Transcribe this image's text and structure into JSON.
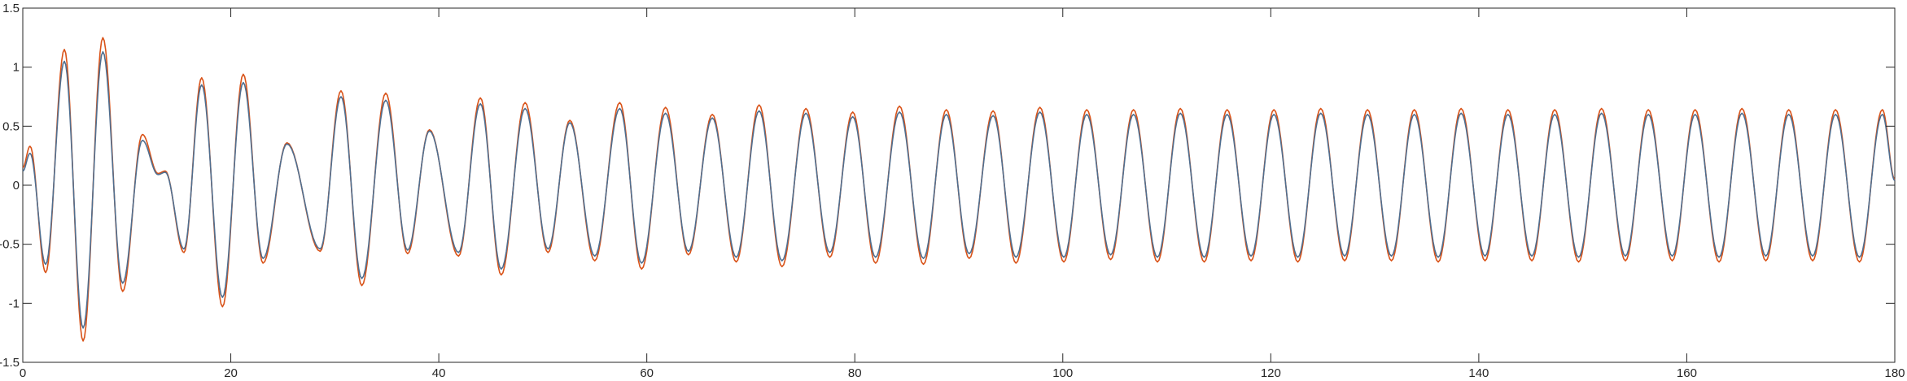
{
  "chart_data": {
    "type": "line",
    "title": "",
    "xlabel": "",
    "ylabel": "",
    "xlim": [
      0,
      180
    ],
    "ylim": [
      -1.5,
      1.5
    ],
    "x_ticks": [
      0,
      20,
      40,
      60,
      80,
      100,
      120,
      140,
      160,
      180
    ],
    "y_ticks": [
      -1.5,
      -1,
      -0.5,
      0,
      0.5,
      1,
      1.5
    ],
    "x_tick_labels": [
      "0",
      "20",
      "40",
      "60",
      "80",
      "100",
      "120",
      "140",
      "160",
      "180"
    ],
    "y_tick_labels": [
      "-1.5",
      "-1",
      "-0.5",
      "0",
      "0.5",
      "1",
      "1.5"
    ],
    "grid": false,
    "legend": "none",
    "series": [
      {
        "color": "#D95319",
        "sampling": "local extrema (peaks and troughs) of an oscillating signal; smooth cosine interpolation between points",
        "points": [
          [
            0,
            0.15
          ],
          [
            0.7,
            0.33
          ],
          [
            2.2,
            -0.74
          ],
          [
            4.0,
            1.15
          ],
          [
            5.8,
            -1.32
          ],
          [
            7.7,
            1.25
          ],
          [
            9.6,
            -0.9
          ],
          [
            11.5,
            0.43
          ],
          [
            13.0,
            0.1
          ],
          [
            13.7,
            0.12
          ],
          [
            15.5,
            -0.57
          ],
          [
            17.2,
            0.91
          ],
          [
            19.2,
            -1.03
          ],
          [
            21.2,
            0.94
          ],
          [
            23.1,
            -0.66
          ],
          [
            25.4,
            0.36
          ],
          [
            28.6,
            -0.56
          ],
          [
            30.6,
            0.8
          ],
          [
            32.6,
            -0.85
          ],
          [
            34.9,
            0.78
          ],
          [
            37.0,
            -0.58
          ],
          [
            39.1,
            0.47
          ],
          [
            41.9,
            -0.6
          ],
          [
            44.0,
            0.74
          ],
          [
            46.0,
            -0.76
          ],
          [
            48.3,
            0.7
          ],
          [
            50.5,
            -0.57
          ],
          [
            52.6,
            0.55
          ],
          [
            55.0,
            -0.64
          ],
          [
            57.4,
            0.7
          ],
          [
            59.5,
            -0.71
          ],
          [
            61.8,
            0.66
          ],
          [
            64.0,
            -0.59
          ],
          [
            66.3,
            0.6
          ],
          [
            68.6,
            -0.65
          ],
          [
            70.8,
            0.68
          ],
          [
            73.0,
            -0.69
          ],
          [
            75.3,
            0.65
          ],
          [
            77.6,
            -0.61
          ],
          [
            79.8,
            0.62
          ],
          [
            82.0,
            -0.66
          ],
          [
            84.3,
            0.67
          ],
          [
            86.6,
            -0.67
          ],
          [
            88.8,
            0.64
          ],
          [
            91.0,
            -0.62
          ],
          [
            93.3,
            0.63
          ],
          [
            95.5,
            -0.66
          ],
          [
            97.8,
            0.66
          ],
          [
            100.1,
            -0.65
          ],
          [
            102.3,
            0.64
          ],
          [
            104.6,
            -0.63
          ],
          [
            106.8,
            0.64
          ],
          [
            109.1,
            -0.65
          ],
          [
            111.3,
            0.65
          ],
          [
            113.6,
            -0.65
          ],
          [
            115.8,
            0.64
          ],
          [
            118.1,
            -0.64
          ],
          [
            120.3,
            0.64
          ],
          [
            122.6,
            -0.65
          ],
          [
            124.8,
            0.65
          ],
          [
            127.1,
            -0.64
          ],
          [
            129.3,
            0.64
          ],
          [
            131.6,
            -0.64
          ],
          [
            133.8,
            0.64
          ],
          [
            136.1,
            -0.65
          ],
          [
            138.3,
            0.65
          ],
          [
            140.6,
            -0.64
          ],
          [
            142.8,
            0.64
          ],
          [
            145.1,
            -0.64
          ],
          [
            147.3,
            0.64
          ],
          [
            149.6,
            -0.65
          ],
          [
            151.8,
            0.65
          ],
          [
            154.1,
            -0.64
          ],
          [
            156.3,
            0.64
          ],
          [
            158.6,
            -0.64
          ],
          [
            160.8,
            0.64
          ],
          [
            163.1,
            -0.65
          ],
          [
            165.3,
            0.65
          ],
          [
            167.6,
            -0.64
          ],
          [
            169.8,
            0.64
          ],
          [
            172.1,
            -0.64
          ],
          [
            174.3,
            0.64
          ],
          [
            176.6,
            -0.65
          ],
          [
            178.8,
            0.64
          ],
          [
            180,
            0.05
          ]
        ]
      },
      {
        "color": "#4F6E8F",
        "sampling": "local extrema (peaks and troughs) of an oscillating signal; smooth cosine interpolation between points",
        "points": [
          [
            0,
            0.12
          ],
          [
            0.7,
            0.27
          ],
          [
            2.2,
            -0.67
          ],
          [
            4.0,
            1.05
          ],
          [
            5.8,
            -1.21
          ],
          [
            7.7,
            1.13
          ],
          [
            9.6,
            -0.83
          ],
          [
            11.5,
            0.38
          ],
          [
            13.0,
            0.09
          ],
          [
            13.7,
            0.11
          ],
          [
            15.5,
            -0.54
          ],
          [
            17.2,
            0.85
          ],
          [
            19.2,
            -0.95
          ],
          [
            21.2,
            0.87
          ],
          [
            23.1,
            -0.62
          ],
          [
            25.4,
            0.35
          ],
          [
            28.6,
            -0.54
          ],
          [
            30.6,
            0.75
          ],
          [
            32.6,
            -0.79
          ],
          [
            34.9,
            0.72
          ],
          [
            37.0,
            -0.55
          ],
          [
            39.1,
            0.46
          ],
          [
            41.9,
            -0.57
          ],
          [
            44.0,
            0.69
          ],
          [
            46.0,
            -0.71
          ],
          [
            48.3,
            0.65
          ],
          [
            50.5,
            -0.54
          ],
          [
            52.6,
            0.53
          ],
          [
            55.0,
            -0.6
          ],
          [
            57.4,
            0.65
          ],
          [
            59.5,
            -0.66
          ],
          [
            61.8,
            0.61
          ],
          [
            64.0,
            -0.56
          ],
          [
            66.3,
            0.57
          ],
          [
            68.6,
            -0.61
          ],
          [
            70.8,
            0.63
          ],
          [
            73.0,
            -0.64
          ],
          [
            75.3,
            0.61
          ],
          [
            77.6,
            -0.57
          ],
          [
            79.8,
            0.58
          ],
          [
            82.0,
            -0.61
          ],
          [
            84.3,
            0.62
          ],
          [
            86.6,
            -0.62
          ],
          [
            88.8,
            0.6
          ],
          [
            91.0,
            -0.58
          ],
          [
            93.3,
            0.59
          ],
          [
            95.5,
            -0.61
          ],
          [
            97.8,
            0.62
          ],
          [
            100.1,
            -0.61
          ],
          [
            102.3,
            0.6
          ],
          [
            104.6,
            -0.59
          ],
          [
            106.8,
            0.6
          ],
          [
            109.1,
            -0.61
          ],
          [
            111.3,
            0.61
          ],
          [
            113.6,
            -0.61
          ],
          [
            115.8,
            0.6
          ],
          [
            118.1,
            -0.6
          ],
          [
            120.3,
            0.6
          ],
          [
            122.6,
            -0.61
          ],
          [
            124.8,
            0.61
          ],
          [
            127.1,
            -0.6
          ],
          [
            129.3,
            0.6
          ],
          [
            131.6,
            -0.6
          ],
          [
            133.8,
            0.6
          ],
          [
            136.1,
            -0.61
          ],
          [
            138.3,
            0.61
          ],
          [
            140.6,
            -0.6
          ],
          [
            142.8,
            0.6
          ],
          [
            145.1,
            -0.6
          ],
          [
            147.3,
            0.6
          ],
          [
            149.6,
            -0.61
          ],
          [
            151.8,
            0.61
          ],
          [
            154.1,
            -0.6
          ],
          [
            156.3,
            0.6
          ],
          [
            158.6,
            -0.6
          ],
          [
            160.8,
            0.6
          ],
          [
            163.1,
            -0.61
          ],
          [
            165.3,
            0.61
          ],
          [
            167.6,
            -0.6
          ],
          [
            169.8,
            0.6
          ],
          [
            172.1,
            -0.6
          ],
          [
            174.3,
            0.6
          ],
          [
            176.6,
            -0.61
          ],
          [
            178.8,
            0.6
          ],
          [
            180,
            0.04
          ]
        ]
      }
    ]
  }
}
